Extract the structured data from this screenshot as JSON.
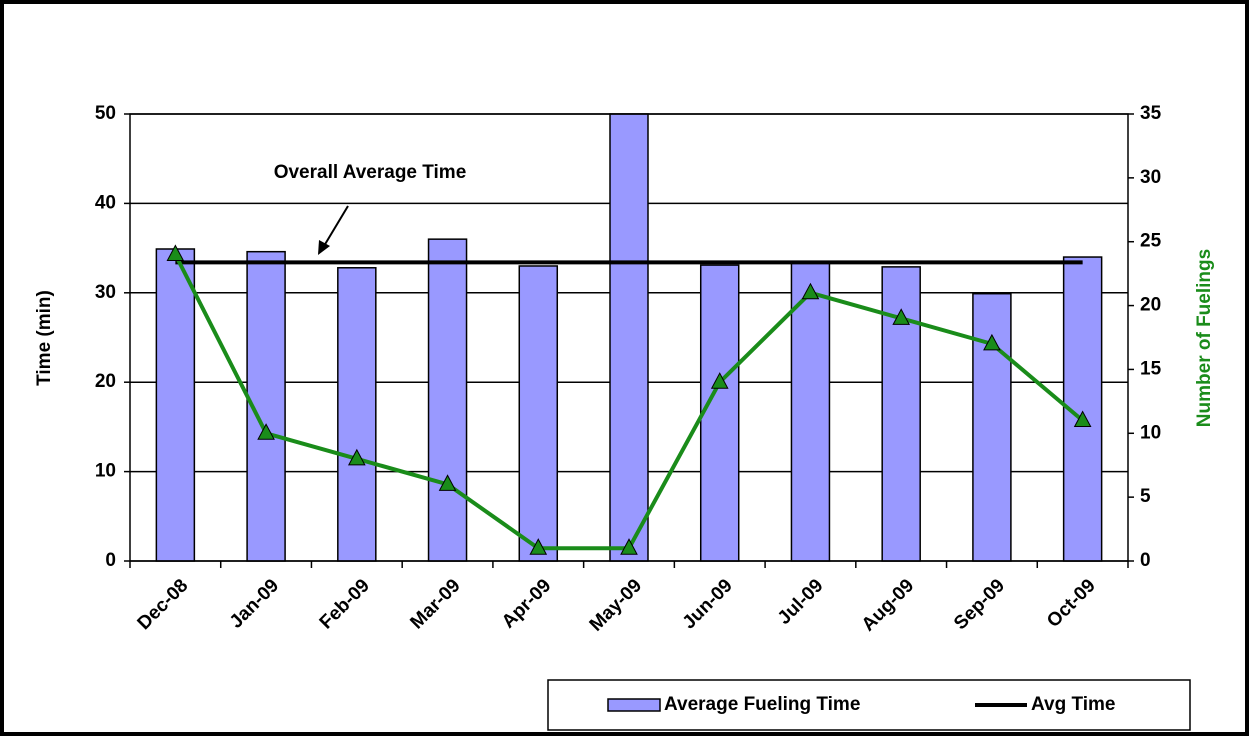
{
  "chart_data": {
    "type": "bar",
    "categories": [
      "Dec-08",
      "Jan-09",
      "Feb-09",
      "Mar-09",
      "Apr-09",
      "May-09",
      "Jun-09",
      "Jul-09",
      "Aug-09",
      "Sep-09",
      "Oct-09"
    ],
    "series": [
      {
        "name": "Average Fueling Time",
        "color": "#9999ff",
        "values": [
          34.9,
          34.6,
          32.8,
          36.0,
          33.0,
          50,
          33.1,
          33.3,
          32.9,
          29.9,
          34.0
        ]
      },
      {
        "type": "line",
        "axis": "y2",
        "color": "#1a8c1a",
        "values": [
          24,
          10,
          8,
          6,
          1,
          1,
          14,
          21,
          19,
          17,
          11
        ]
      }
    ],
    "avg_line": {
      "name": "Avg Time",
      "color": "#000000",
      "value": 33.4
    },
    "annotation": "Overall Average Time",
    "ylabel": "Time (min)",
    "y2label": "Number of Fuelings",
    "ylim": [
      0,
      50
    ],
    "yticks": [
      0,
      10,
      20,
      30,
      40,
      50
    ],
    "y2lim": [
      0,
      35
    ],
    "y2ticks": [
      0,
      5,
      10,
      15,
      20,
      25,
      30,
      35
    ],
    "grid": true
  }
}
